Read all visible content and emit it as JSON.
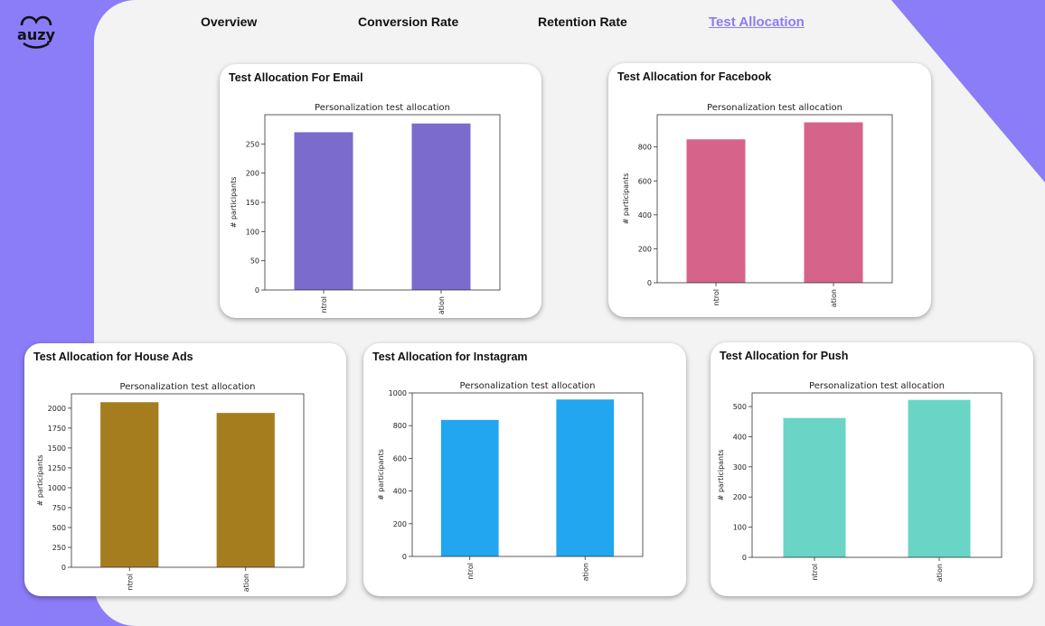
{
  "brand": {
    "logo_text": "auzy",
    "accent": "#8b7cf8"
  },
  "nav": {
    "items": [
      {
        "label": "Overview",
        "active": false
      },
      {
        "label": "Conversion Rate",
        "active": false
      },
      {
        "label": "Retention Rate",
        "active": false
      },
      {
        "label": "Test Allocation",
        "active": true
      }
    ]
  },
  "cards": [
    {
      "title": "Test Allocation For Email"
    },
    {
      "title": "Test Allocation for Facebook"
    },
    {
      "title": "Test Allocation for House Ads"
    },
    {
      "title": "Test Allocation for Instagram"
    },
    {
      "title": "Test Allocation for Push"
    }
  ],
  "chart_data": [
    {
      "type": "bar",
      "title": "Personalization test allocation",
      "ylabel": "# participants",
      "categories": [
        "ntrol",
        "ation"
      ],
      "values": [
        270,
        285
      ],
      "ylim": [
        0,
        300
      ],
      "yticks": [
        0,
        50,
        100,
        150,
        200,
        250
      ],
      "color": "#7a6bcd"
    },
    {
      "type": "bar",
      "title": "Personalization test allocation",
      "ylabel": "# participants",
      "categories": [
        "ntrol",
        "ation"
      ],
      "values": [
        845,
        945
      ],
      "ylim": [
        0,
        990
      ],
      "yticks": [
        0,
        200,
        400,
        600,
        800
      ],
      "color": "#d6638a"
    },
    {
      "type": "bar",
      "title": "Personalization test allocation",
      "ylabel": "# participants",
      "categories": [
        "ntrol",
        "ation"
      ],
      "values": [
        2075,
        1940
      ],
      "ylim": [
        0,
        2180
      ],
      "yticks": [
        0,
        250,
        500,
        750,
        1000,
        1250,
        1500,
        1750,
        2000
      ],
      "color": "#a57d1e"
    },
    {
      "type": "bar",
      "title": "Personalization test allocation",
      "ylabel": "# participants",
      "categories": [
        "ntrol",
        "ation"
      ],
      "values": [
        835,
        960
      ],
      "ylim": [
        0,
        1000
      ],
      "yticks": [
        0,
        200,
        400,
        600,
        800,
        1000
      ],
      "color": "#22a6ef"
    },
    {
      "type": "bar",
      "title": "Personalization test allocation",
      "ylabel": "# participants",
      "categories": [
        "ntrol",
        "ation"
      ],
      "values": [
        462,
        522
      ],
      "ylim": [
        0,
        545
      ],
      "yticks": [
        0,
        100,
        200,
        300,
        400,
        500
      ],
      "color": "#6ad4c6"
    }
  ]
}
